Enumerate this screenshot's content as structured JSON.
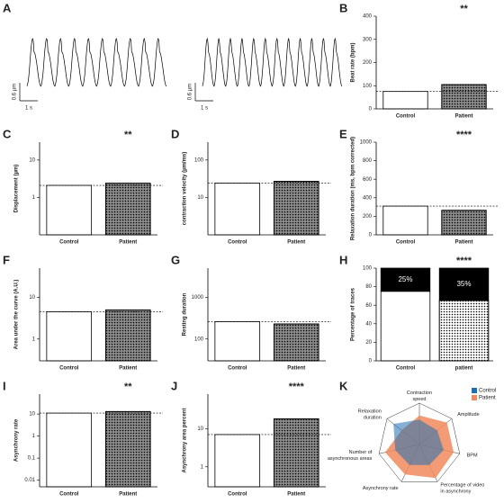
{
  "chart_data": [
    {
      "type": "trace",
      "label": "A",
      "traces": [
        {
          "scale_y": "0.6 µm",
          "scale_x": "1 s"
        },
        {
          "scale_y": "0.6 µm",
          "scale_x": "1 s"
        }
      ]
    },
    {
      "type": "bar",
      "label": "B",
      "ylabel": "Beat rate (bpm)",
      "categories": [
        "Control",
        "Patient"
      ],
      "values": [
        75,
        105
      ],
      "colors": [
        "#ffffff",
        "#8c8c8c"
      ],
      "ylim": [
        0,
        400
      ],
      "yticks": [
        0,
        100,
        200,
        300,
        400
      ],
      "annotation": "**"
    },
    {
      "type": "bar",
      "label": "C",
      "ylabel": "Displacement (µm)",
      "categories": [
        "Control",
        "Patient"
      ],
      "values": [
        2.1,
        2.4
      ],
      "colors": [
        "#ffffff",
        "#8c8c8c"
      ],
      "log": true,
      "ylim": [
        0.1,
        30
      ],
      "yticks": [
        1,
        10
      ],
      "annotation": "**"
    },
    {
      "type": "bar",
      "label": "D",
      "ylabel": "contraction velocity (µm/ms)",
      "categories": [
        "Control",
        "Patient"
      ],
      "values": [
        24,
        27
      ],
      "colors": [
        "#ffffff",
        "#8c8c8c"
      ],
      "log": true,
      "ylim": [
        1,
        300
      ],
      "yticks": [
        10,
        100
      ]
    },
    {
      "type": "bar",
      "label": "E",
      "ylabel": "Relaxation duration (ms, bpm corrected)",
      "categories": [
        "Control",
        "Patient"
      ],
      "values": [
        310,
        265
      ],
      "colors": [
        "#ffffff",
        "#8c8c8c"
      ],
      "ylim": [
        0,
        1000
      ],
      "yticks": [
        0,
        200,
        400,
        600,
        800,
        1000
      ],
      "annotation": "****"
    },
    {
      "type": "bar",
      "label": "F",
      "ylabel": "Area under the curve (A.U.)",
      "categories": [
        "Control",
        "Patient"
      ],
      "values": [
        4.5,
        5
      ],
      "colors": [
        "#ffffff",
        "#8c8c8c"
      ],
      "log": true,
      "ylim": [
        0.3,
        50
      ],
      "yticks": [
        1,
        10
      ]
    },
    {
      "type": "bar",
      "label": "G",
      "ylabel": "Resting duration",
      "categories": [
        "Control",
        "Patient"
      ],
      "values": [
        260,
        230
      ],
      "colors": [
        "#ffffff",
        "#8c8c8c"
      ],
      "log": true,
      "ylim": [
        30,
        5000
      ],
      "yticks": [
        100,
        1000
      ]
    },
    {
      "type": "stacked_bar",
      "label": "H",
      "ylabel": "Percentage of traces",
      "categories": [
        "Control",
        "patient"
      ],
      "series": [
        {
          "color": "#ffffff",
          "values": [
            75,
            65
          ]
        },
        {
          "color": "#000000",
          "values": [
            25,
            35
          ],
          "value_labels": [
            "25%",
            "35%"
          ]
        }
      ],
      "ylim": [
        0,
        100
      ],
      "yticks": [
        0,
        20,
        40,
        60,
        80,
        100
      ],
      "annotation": "****"
    },
    {
      "type": "bar",
      "label": "I",
      "ylabel": "Asynchrony rate",
      "categories": [
        "Control",
        "Patient"
      ],
      "values": [
        11,
        13
      ],
      "colors": [
        "#ffffff",
        "#8c8c8c"
      ],
      "log": true,
      "ylim": [
        0.005,
        80
      ],
      "yticks": [
        0.01,
        0.1,
        1,
        10
      ],
      "annotation": "**"
    },
    {
      "type": "bar",
      "label": "J",
      "ylabel": "Asynchrony area percent",
      "categories": [
        "Control",
        "Patient"
      ],
      "values": [
        7,
        18
      ],
      "colors": [
        "#ffffff",
        "#8c8c8c"
      ],
      "log": true,
      "ylim": [
        0.3,
        80
      ],
      "yticks": [
        1,
        10
      ],
      "annotation": "****"
    },
    {
      "type": "radar",
      "label": "K",
      "axes": [
        "Contraction speed",
        "Amplitude",
        "BPM",
        "Percentage of video in asynchrony",
        "Asynchrony rate",
        "Number of asynchronous areas",
        "Relaxation duration"
      ],
      "rlim": [
        0,
        1
      ],
      "series": [
        {
          "name": "Control",
          "color": "#1f6fb5",
          "values": [
            0.6,
            0.55,
            0.6,
            0.55,
            0.55,
            0.6,
            0.8
          ]
        },
        {
          "name": "Patient",
          "color": "#f08a5d",
          "values": [
            0.7,
            0.85,
            0.85,
            0.9,
            0.8,
            0.85,
            0.55
          ]
        }
      ]
    }
  ]
}
